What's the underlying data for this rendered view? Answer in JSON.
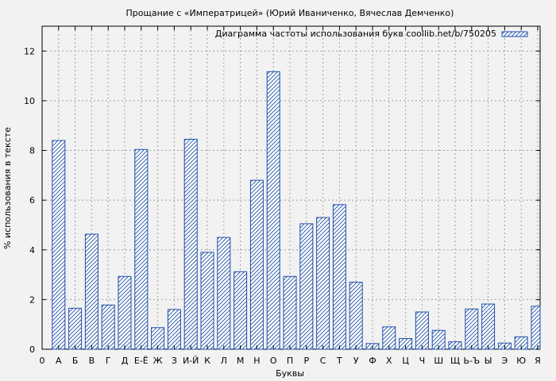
{
  "chart_data": {
    "type": "bar",
    "title": "Прощание с «Императрицей» (Юрий Иваниченко, Вячеслав Демченко)",
    "xlabel": "Буквы",
    "ylabel": "% использования в тексте",
    "legend": {
      "label": "Диаграмма частоты использования букв coollib.net/b/750205",
      "placement": "top-right"
    },
    "x_start_label": "0",
    "categories": [
      "А",
      "Б",
      "В",
      "Г",
      "Д",
      "Е-Ё",
      "Ж",
      "З",
      "И-Й",
      "К",
      "Л",
      "М",
      "Н",
      "О",
      "П",
      "Р",
      "С",
      "Т",
      "У",
      "Ф",
      "Х",
      "Ц",
      "Ч",
      "Ш",
      "Щ",
      "Ь-Ъ",
      "Ы",
      "Э",
      "Ю",
      "Я"
    ],
    "values": [
      8.4,
      1.65,
      4.63,
      1.78,
      2.93,
      8.04,
      0.87,
      1.6,
      8.45,
      3.9,
      4.5,
      3.12,
      6.8,
      11.17,
      2.93,
      5.05,
      5.3,
      5.82,
      2.7,
      0.23,
      0.9,
      0.43,
      1.5,
      0.76,
      0.3,
      1.62,
      1.82,
      0.25,
      0.5,
      1.73
    ],
    "ylim": [
      0,
      13
    ],
    "yticks": [
      0,
      2,
      4,
      6,
      8,
      10,
      12
    ],
    "grid": true,
    "colors": {
      "bar_stroke": "#1f4fa8",
      "bar_fill": "#ffffff",
      "background": "#f2f2f2",
      "grid": "#a0a0a0"
    }
  }
}
